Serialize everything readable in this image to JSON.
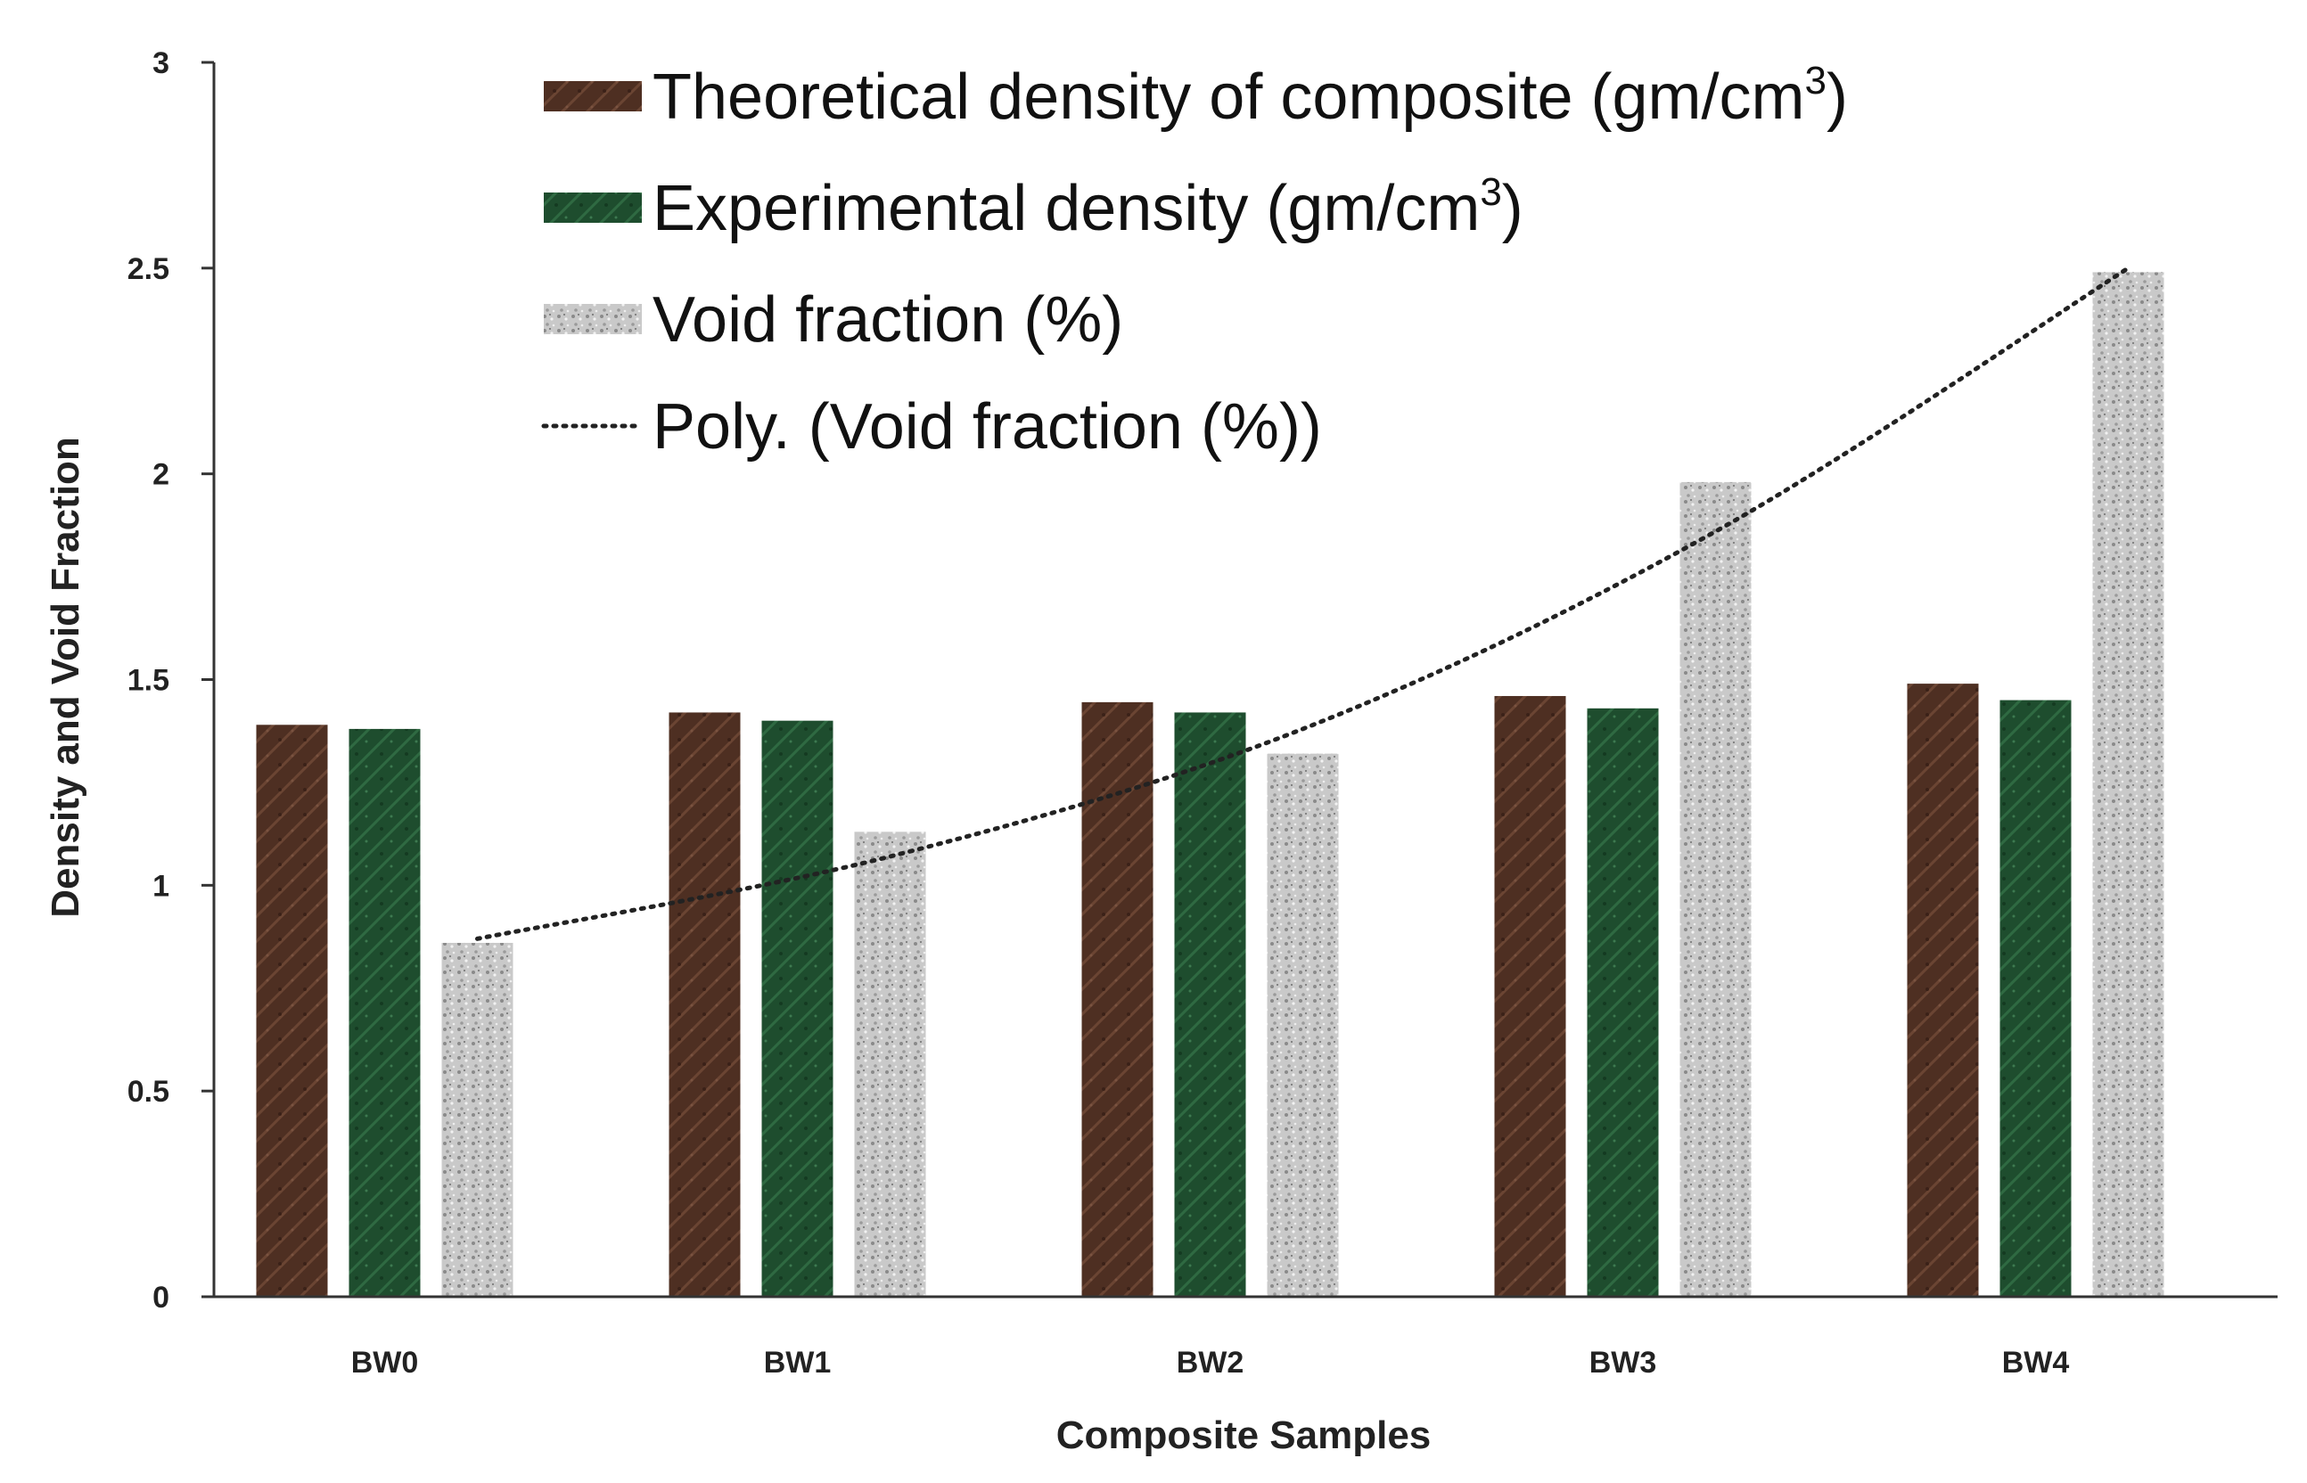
{
  "chart_data": {
    "type": "bar",
    "title": "",
    "xlabel": "Composite Samples",
    "ylabel": "Density and Void Fraction",
    "ylim": [
      0,
      3
    ],
    "yticks": [
      0,
      0.5,
      1,
      1.5,
      2,
      2.5,
      3
    ],
    "ytick_labels": [
      "0",
      "0.5",
      "1",
      "1.5",
      "2",
      "2.5",
      "3"
    ],
    "categories": [
      "BW0",
      "BW1",
      "BW2",
      "BW3",
      "BW4"
    ],
    "series": [
      {
        "name": "Theoretical density of composite (gm/cm",
        "sup": "3",
        "suffix": ")",
        "values": [
          1.39,
          1.42,
          1.445,
          1.46,
          1.49
        ],
        "color": "#4e2f22"
      },
      {
        "name": "Experimental density (gm/cm",
        "sup": "3",
        "suffix": ")",
        "values": [
          1.38,
          1.4,
          1.42,
          1.43,
          1.45
        ],
        "color": "#1e4d2e"
      },
      {
        "name": "Void fraction (%)",
        "sup": "",
        "suffix": "",
        "values": [
          0.86,
          1.13,
          1.32,
          1.98,
          2.49
        ],
        "color": "#b9b9b9"
      }
    ],
    "trendline": {
      "name": "Poly. (Void fraction (%))",
      "type": "polynomial",
      "of_series": "Void fraction (%)",
      "values": [
        0.87,
        1.07,
        1.38,
        1.86,
        2.5
      ],
      "color": "#222222",
      "style": "dotted"
    },
    "grid": false,
    "legend": "top-center"
  }
}
